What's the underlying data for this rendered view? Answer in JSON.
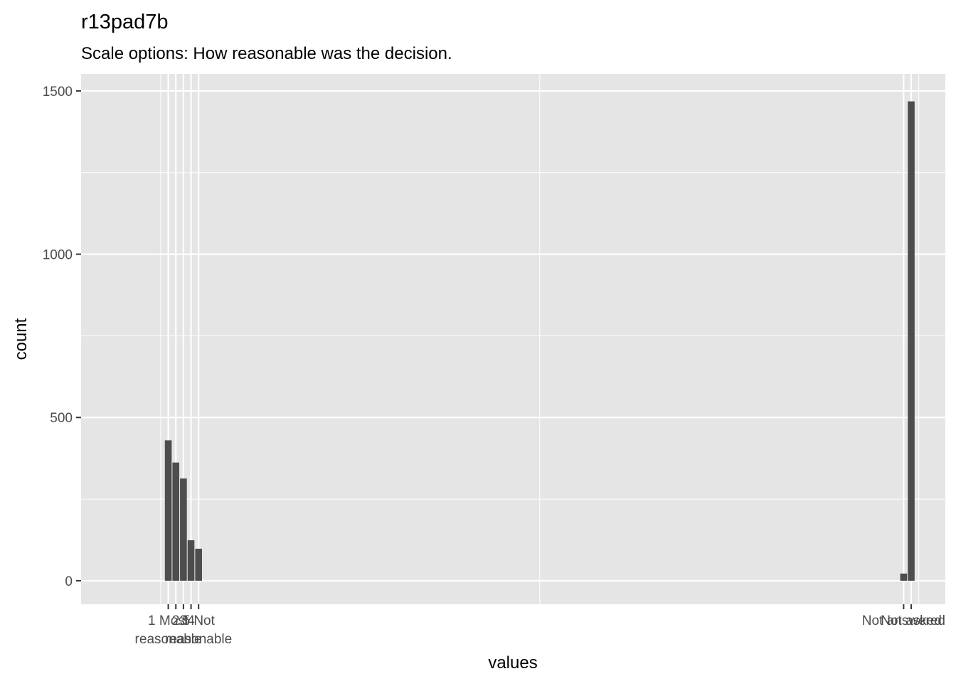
{
  "chart_data": {
    "type": "bar",
    "title": "r13pad7b",
    "subtitle": "Scale options: How reasonable was the decision.",
    "xlabel": "values",
    "ylabel": "count",
    "ylim": [
      -72,
      1552
    ],
    "xlim": [
      -10.5,
      103.5
    ],
    "grid": true,
    "y_ticks": [
      0,
      500,
      1000,
      1500
    ],
    "bars": [
      {
        "x": 1,
        "value": 430
      },
      {
        "x": 2,
        "value": 362
      },
      {
        "x": 3,
        "value": 313
      },
      {
        "x": 4,
        "value": 124
      },
      {
        "x": 5,
        "value": 98
      },
      {
        "x": 98,
        "value": 22
      },
      {
        "x": 99,
        "value": 1468
      }
    ],
    "x_tick_labels": [
      {
        "x": 1,
        "label": "1 Most\nreasonable"
      },
      {
        "x": 2,
        "label": "2"
      },
      {
        "x": 3,
        "label": "3"
      },
      {
        "x": 4,
        "label": "4"
      },
      {
        "x": 5,
        "label": "5 Not\nreasonable"
      },
      {
        "x": 98,
        "label": "Not answered"
      },
      {
        "x": 99,
        "label": "Not asked"
      }
    ],
    "colors": {
      "panel": "#e5e5e5",
      "grid": "#ffffff",
      "bar": "#4d4d4d",
      "tick_text": "#4d4d4d"
    }
  }
}
